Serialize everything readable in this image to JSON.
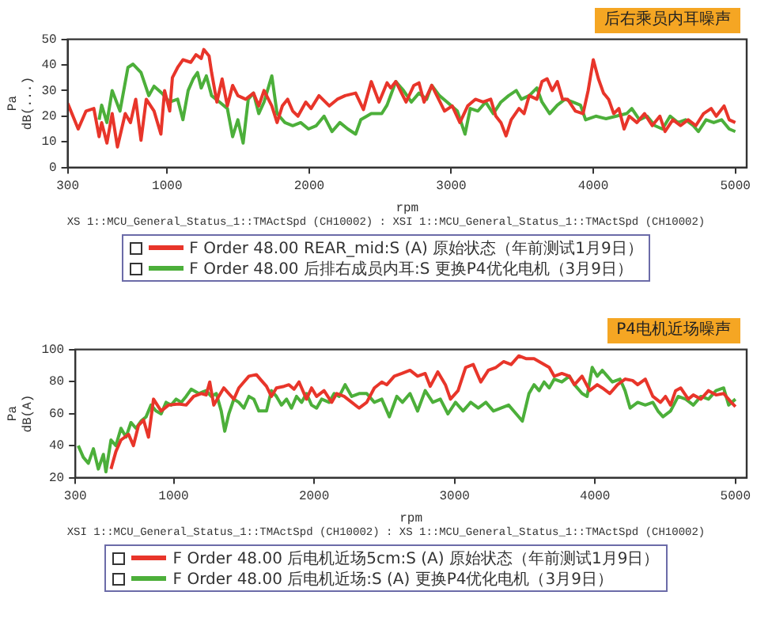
{
  "chart_data": [
    {
      "type": "line",
      "title": "后右乘员内耳噪声",
      "xlabel": "rpm",
      "ylabel": "Pa\ndB(...)",
      "xlim": [
        300,
        5080
      ],
      "xticks": [
        300,
        1000,
        2000,
        3000,
        4000,
        5000
      ],
      "ylim": [
        0,
        50
      ],
      "yticks": [
        0,
        10,
        20,
        30,
        40,
        50
      ],
      "grid": false,
      "marker": "none",
      "legend": "bottom",
      "annotations": [
        "XS 1::MCU_General_Status_1::TMActSpd (CH10002) : XSI 1::MCU_General_Status_1::TMActSpd (CH10002)"
      ],
      "series": [
        {
          "name": "F Order 48.00 REAR_mid:S (A)  原始状态（年前测试1月9日）",
          "color": "#e8352a",
          "x": [
            300,
            374,
            429,
            484,
            521,
            539,
            576,
            613,
            650,
            705,
            742,
            779,
            816,
            853,
            908,
            956,
            982,
            1018,
            1037,
            1074,
            1111,
            1166,
            1203,
            1240,
            1258,
            1295,
            1313,
            1350,
            1387,
            1424,
            1461,
            1498,
            1553,
            1608,
            1645,
            1682,
            1737,
            1774,
            1811,
            1848,
            1884,
            1921,
            1976,
            2013,
            2069,
            2142,
            2198,
            2253,
            2327,
            2382,
            2437,
            2492,
            2548,
            2574,
            2610,
            2682,
            2737,
            2773,
            2809,
            2863,
            2899,
            2953,
            3007,
            3061,
            3116,
            3170,
            3224,
            3278,
            3314,
            3350,
            3386,
            3422,
            3477,
            3513,
            3549,
            3603,
            3639,
            3675,
            3711,
            3747,
            3783,
            3819,
            3874,
            3928,
            3964,
            4000,
            4036,
            4072,
            4108,
            4144,
            4180,
            4217,
            4253,
            4307,
            4361,
            4415,
            4469,
            4505,
            4560,
            4614,
            4668,
            4722,
            4776,
            4830,
            4866,
            4921,
            4957,
            5000
          ],
          "values": [
            25,
            15,
            22,
            23,
            12,
            17.5,
            9.5,
            21,
            8,
            21,
            17.5,
            26.6,
            10.6,
            26.6,
            22,
            13,
            30,
            22,
            35,
            39,
            42,
            41,
            44,
            42.5,
            46,
            43.5,
            37,
            25.5,
            34.5,
            24,
            32,
            28,
            26.6,
            29,
            24,
            30,
            24,
            17.5,
            24,
            26.6,
            22,
            20,
            25.5,
            23,
            28,
            24,
            26.6,
            28,
            29,
            22.6,
            33.5,
            25.5,
            33,
            31,
            33.5,
            25.5,
            32,
            33,
            25.5,
            32,
            28,
            22,
            24,
            17.5,
            24,
            26.6,
            25.5,
            26.6,
            20,
            17.5,
            12.3,
            18.6,
            23,
            21,
            28,
            26.6,
            33.5,
            34.6,
            30,
            33.5,
            26.6,
            26.6,
            22,
            21,
            30,
            42,
            34.6,
            29,
            26.6,
            21,
            23,
            15,
            20,
            17.5,
            21,
            16.3,
            20,
            14,
            18.6,
            16.3,
            18.6,
            16.3,
            21,
            23,
            20,
            24,
            18.6,
            17.5
          ]
        },
        {
          "name": "F Order 48.00 后排右成员内耳:S 更换P4优化电机（3月9日）",
          "color": "#4caf3a",
          "x": [
            521,
            539,
            576,
            613,
            668,
            724,
            760,
            816,
            871,
            908,
            963,
            1018,
            1074,
            1111,
            1148,
            1184,
            1214,
            1240,
            1276,
            1313,
            1369,
            1424,
            1461,
            1498,
            1535,
            1571,
            1608,
            1645,
            1682,
            1737,
            1774,
            1829,
            1884,
            1940,
            1995,
            2050,
            2105,
            2161,
            2216,
            2272,
            2327,
            2363,
            2437,
            2511,
            2548,
            2610,
            2664,
            2719,
            2773,
            2827,
            2863,
            2917,
            2971,
            3043,
            3097,
            3134,
            3188,
            3242,
            3296,
            3350,
            3404,
            3458,
            3494,
            3549,
            3603,
            3639,
            3693,
            3747,
            3801,
            3855,
            3910,
            3946,
            4018,
            4090,
            4162,
            4235,
            4271,
            4325,
            4379,
            4433,
            4487,
            4541,
            4596,
            4650,
            4704,
            4740,
            4794,
            4848,
            4903,
            4957,
            5000
          ],
          "values": [
            18.6,
            24.3,
            17.5,
            30,
            22,
            39,
            40.3,
            37,
            28,
            31.7,
            29,
            25.5,
            26.6,
            18.6,
            30,
            34.6,
            37,
            31,
            35.7,
            28,
            25.5,
            23,
            12,
            18.6,
            9.5,
            26.6,
            29,
            21,
            25.5,
            35.7,
            21,
            17.5,
            16.3,
            17.5,
            15,
            16.3,
            20,
            14,
            17.5,
            15,
            13,
            18.6,
            21,
            21,
            24.3,
            33.5,
            30,
            25.5,
            29,
            26.6,
            32,
            28,
            25.5,
            22,
            13,
            23,
            22,
            25.5,
            21,
            25.5,
            28,
            30,
            26.6,
            28,
            31,
            25.5,
            21,
            24.3,
            26.6,
            25.5,
            24.3,
            18.6,
            20,
            19,
            20,
            21,
            23,
            18.6,
            20,
            16.3,
            15,
            20,
            17.5,
            18.6,
            16.3,
            14,
            18.6,
            17.5,
            18.6,
            15,
            14
          ]
        }
      ]
    },
    {
      "type": "line",
      "title": "P4电机近场噪声",
      "xlabel": "rpm",
      "ylabel": "Pa\ndB(A)",
      "xlim": [
        300,
        5080
      ],
      "xticks": [
        300,
        1000,
        2000,
        3000,
        4000,
        5000
      ],
      "ylim": [
        20,
        100
      ],
      "yticks": [
        20,
        40,
        60,
        80,
        100
      ],
      "grid": false,
      "marker": "none",
      "legend": "bottom",
      "annotations": [
        "XSI 1::MCU_General_Status_1::TMActSpd (CH10002) : XS 1::MCU_General_Status_1::TMActSpd (CH10002)"
      ],
      "series": [
        {
          "name": "F Order 48.00 后电机近场5cm:S (A)  原始状态（年前测试1月9日）",
          "color": "#e8352a",
          "x": [
            554,
            589,
            625,
            679,
            714,
            750,
            786,
            821,
            857,
            911,
            964,
            1036,
            1089,
            1143,
            1196,
            1232,
            1257,
            1286,
            1321,
            1357,
            1393,
            1429,
            1464,
            1500,
            1536,
            1589,
            1625,
            1661,
            1696,
            1732,
            1786,
            1821,
            1857,
            1893,
            1946,
            1982,
            2018,
            2071,
            2125,
            2161,
            2214,
            2268,
            2321,
            2375,
            2429,
            2482,
            2518,
            2571,
            2625,
            2683,
            2737,
            2791,
            2827,
            2881,
            2935,
            2971,
            3025,
            3079,
            3133,
            3187,
            3241,
            3295,
            3349,
            3403,
            3457,
            3512,
            3566,
            3620,
            3674,
            3710,
            3764,
            3818,
            3854,
            3908,
            3962,
            4016,
            4052,
            4106,
            4160,
            4214,
            4268,
            4304,
            4358,
            4412,
            4466,
            4502,
            4538,
            4574,
            4610,
            4664,
            4700,
            4754,
            4808,
            4862,
            4916,
            4970,
            5000
          ],
          "values": [
            25.4,
            36.3,
            43.5,
            47,
            40,
            52.6,
            56,
            45.3,
            69,
            61.6,
            65.3,
            66,
            65.3,
            70.7,
            72.5,
            71.6,
            79.7,
            65.3,
            70.7,
            76,
            72.5,
            69,
            76,
            79.7,
            83.3,
            84.3,
            80.6,
            77,
            70.7,
            76,
            77,
            78,
            75.2,
            79.7,
            69,
            76,
            70.7,
            74.3,
            67,
            72.5,
            70.7,
            67,
            63.4,
            67,
            76,
            79.7,
            78,
            83.3,
            85,
            87,
            83.3,
            85,
            77,
            86,
            78,
            69,
            74.3,
            88.8,
            90.6,
            79.7,
            87,
            88.8,
            92.4,
            90.6,
            96,
            94.2,
            94.2,
            91.5,
            88.8,
            83.3,
            85,
            83.3,
            78,
            83.3,
            74.3,
            78,
            76,
            72.5,
            78,
            81.5,
            80.6,
            78,
            81.5,
            70.7,
            67,
            70.7,
            65.3,
            74.3,
            76,
            69,
            71.6,
            69,
            74.3,
            71.6,
            72.5,
            67,
            64.3
          ]
        },
        {
          "name": "F Order 48.00 后电机近场:S (A)  更换P4优化电机（3月9日）",
          "color": "#4caf3a",
          "x": [
            321,
            357,
            393,
            429,
            464,
            500,
            518,
            554,
            589,
            625,
            661,
            696,
            732,
            768,
            804,
            839,
            875,
            911,
            946,
            982,
            1018,
            1054,
            1089,
            1125,
            1179,
            1232,
            1268,
            1304,
            1339,
            1364,
            1393,
            1429,
            1464,
            1500,
            1536,
            1571,
            1607,
            1661,
            1696,
            1732,
            1768,
            1804,
            1839,
            1875,
            1911,
            1946,
            1982,
            2018,
            2054,
            2107,
            2143,
            2179,
            2221,
            2268,
            2321,
            2375,
            2429,
            2482,
            2536,
            2589,
            2629,
            2683,
            2737,
            2791,
            2845,
            2899,
            2953,
            3007,
            3061,
            3115,
            3169,
            3223,
            3277,
            3331,
            3385,
            3439,
            3483,
            3530,
            3566,
            3602,
            3638,
            3674,
            3710,
            3764,
            3818,
            3854,
            3908,
            3944,
            3980,
            4016,
            4052,
            4088,
            4124,
            4178,
            4214,
            4250,
            4304,
            4358,
            4412,
            4448,
            4484,
            4538,
            4592,
            4646,
            4700,
            4754,
            4808,
            4862,
            4916,
            4952,
            5000
          ],
          "values": [
            40,
            32.7,
            29,
            38,
            25.4,
            34.5,
            23.6,
            43.5,
            40,
            50.8,
            45.3,
            54.4,
            50.8,
            55.3,
            58,
            65.3,
            61.6,
            59.8,
            67,
            65.3,
            69,
            67,
            70.7,
            75.2,
            72.5,
            74.3,
            70.7,
            72.5,
            61.6,
            49,
            59.8,
            69,
            67,
            63.4,
            70.7,
            69,
            61.6,
            61.6,
            74.3,
            70.7,
            65.3,
            69,
            63.4,
            70.7,
            67,
            72.5,
            65.3,
            63.4,
            69,
            67,
            72.5,
            70.7,
            78,
            70.7,
            72.5,
            72.5,
            67,
            69,
            58,
            70.7,
            67,
            72.5,
            61.6,
            74.3,
            67,
            69,
            59.8,
            67,
            61.6,
            67,
            63.4,
            67,
            61.6,
            63.4,
            65.3,
            59.8,
            55.3,
            72.5,
            78,
            74.3,
            79.7,
            76,
            81.5,
            79.7,
            83.3,
            78,
            72.5,
            70.7,
            88.8,
            83.3,
            87,
            83.3,
            79.7,
            81.5,
            74.3,
            63.4,
            67,
            65.3,
            67,
            61.6,
            58,
            61.6,
            70.7,
            69,
            65.3,
            70.7,
            69,
            74.3,
            76,
            65.3,
            69
          ]
        }
      ]
    }
  ]
}
